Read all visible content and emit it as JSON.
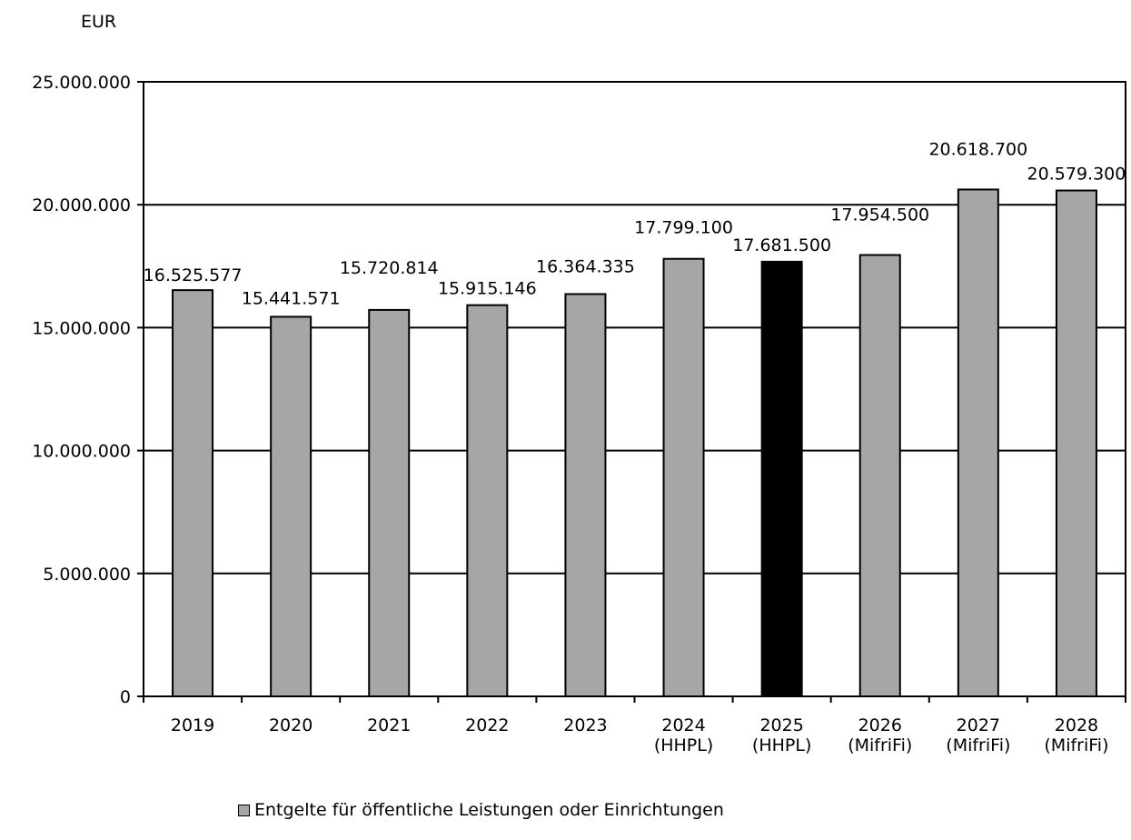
{
  "chart_data": {
    "type": "bar",
    "unit_label": "EUR",
    "categories": [
      [
        "2019"
      ],
      [
        "2020"
      ],
      [
        "2021"
      ],
      [
        "2022"
      ],
      [
        "2023"
      ],
      [
        "2024",
        "(HHPL)"
      ],
      [
        "2025",
        "(HHPL)"
      ],
      [
        "2026",
        "(MifriFi)"
      ],
      [
        "2027",
        "(MifriFi)"
      ],
      [
        "2028",
        "(MifriFi)"
      ]
    ],
    "values": [
      16525577,
      15441571,
      15720814,
      15915146,
      16364335,
      17799100,
      17681500,
      17954500,
      20618700,
      20579300
    ],
    "value_labels": [
      "16.525.577",
      "15.441.571",
      "15.720.814",
      "15.915.146",
      "16.364.335",
      "17.799.100",
      "17.681.500",
      "17.954.500",
      "20.618.700",
      "20.579.300"
    ],
    "highlight_index": 6,
    "colors": {
      "bar": "#a6a6a6",
      "highlight": "#000000"
    },
    "ylim": [
      0,
      25000000
    ],
    "yticks": [
      0,
      5000000,
      10000000,
      15000000,
      20000000,
      25000000
    ],
    "ytick_labels": [
      "0",
      "5.000.000",
      "10.000.000",
      "15.000.000",
      "20.000.000",
      "25.000.000"
    ],
    "grid": true,
    "legend": {
      "position": "bottom",
      "entries": [
        "Entgelte für öffentliche Leistungen oder Einrichtungen"
      ]
    }
  }
}
